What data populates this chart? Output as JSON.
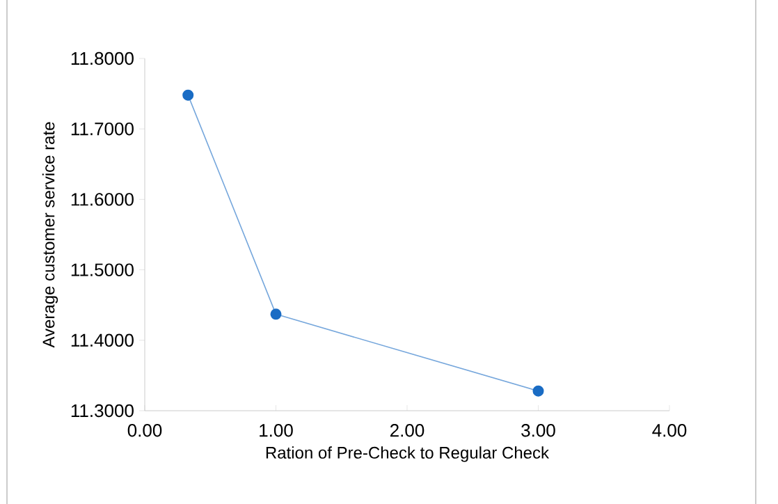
{
  "chart_data": {
    "type": "line",
    "xlabel": "Ration of Pre-Check to Regular Check",
    "ylabel": "Average customer service rate",
    "x": [
      0.33,
      1,
      3
    ],
    "series": [
      {
        "color": "#1a6cc4",
        "values": [
          11.748,
          11.437,
          11.328
        ]
      }
    ],
    "xlim": [
      0,
      4
    ],
    "ylim": [
      11.3,
      11.8
    ],
    "xticks": [
      {
        "value": 0,
        "label": "0.00"
      },
      {
        "value": 1,
        "label": "1.00"
      },
      {
        "value": 2,
        "label": "2.00"
      },
      {
        "value": 3,
        "label": "3.00"
      },
      {
        "value": 4,
        "label": "4.00"
      }
    ],
    "yticks": [
      {
        "value": 11.3,
        "label": "11.3000"
      },
      {
        "value": 11.4,
        "label": "11.4000"
      },
      {
        "value": 11.5,
        "label": "11.5000"
      },
      {
        "value": 11.6,
        "label": "11.6000"
      },
      {
        "value": 11.7,
        "label": "11.7000"
      },
      {
        "value": 11.8,
        "label": "11.8000"
      }
    ],
    "grid": false,
    "marker": "circle",
    "line_style": "solid"
  }
}
